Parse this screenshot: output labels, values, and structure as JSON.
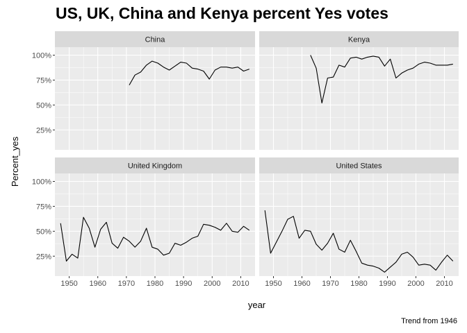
{
  "chart_data": {
    "type": "line",
    "title": "US, UK, China and Kenya percent Yes votes",
    "xlabel": "year",
    "ylabel": "Percent_yes",
    "caption": "Trend from 1946",
    "xlim": [
      1945,
      2015
    ],
    "ylim": [
      0.05,
      1.08
    ],
    "x_ticks": [
      1950,
      1960,
      1970,
      1980,
      1990,
      2000,
      2010
    ],
    "y_ticks": [
      0.25,
      0.5,
      0.75,
      1.0
    ],
    "y_tick_labels": [
      "25%",
      "50%",
      "75%",
      "100%"
    ],
    "grid": true,
    "facets": [
      {
        "name": "China",
        "x": [
          1971,
          1973,
          1975,
          1977,
          1979,
          1981,
          1983,
          1985,
          1987,
          1989,
          1991,
          1993,
          1995,
          1997,
          1999,
          2001,
          2003,
          2005,
          2007,
          2009,
          2011,
          2013
        ],
        "y": [
          0.7,
          0.8,
          0.83,
          0.9,
          0.94,
          0.92,
          0.88,
          0.85,
          0.89,
          0.93,
          0.92,
          0.87,
          0.86,
          0.84,
          0.76,
          0.85,
          0.88,
          0.88,
          0.87,
          0.88,
          0.84,
          0.86
        ]
      },
      {
        "name": "Kenya",
        "x": [
          1963,
          1965,
          1967,
          1969,
          1971,
          1973,
          1975,
          1977,
          1979,
          1981,
          1983,
          1985,
          1987,
          1989,
          1991,
          1993,
          1995,
          1997,
          1999,
          2001,
          2003,
          2005,
          2007,
          2009,
          2011,
          2013
        ],
        "y": [
          1.0,
          0.87,
          0.52,
          0.77,
          0.78,
          0.9,
          0.88,
          0.97,
          0.98,
          0.96,
          0.98,
          0.99,
          0.98,
          0.89,
          0.96,
          0.77,
          0.82,
          0.85,
          0.87,
          0.91,
          0.93,
          0.92,
          0.9,
          0.9,
          0.9,
          0.91
        ]
      },
      {
        "name": "United Kingdom",
        "x": [
          1947,
          1949,
          1951,
          1953,
          1955,
          1957,
          1959,
          1961,
          1963,
          1965,
          1967,
          1969,
          1971,
          1973,
          1975,
          1977,
          1979,
          1981,
          1983,
          1985,
          1987,
          1989,
          1991,
          1993,
          1995,
          1997,
          1999,
          2001,
          2003,
          2005,
          2007,
          2009,
          2011,
          2013
        ],
        "y": [
          0.58,
          0.2,
          0.27,
          0.23,
          0.64,
          0.53,
          0.34,
          0.52,
          0.59,
          0.38,
          0.33,
          0.44,
          0.4,
          0.34,
          0.4,
          0.53,
          0.34,
          0.32,
          0.26,
          0.28,
          0.38,
          0.36,
          0.39,
          0.43,
          0.45,
          0.57,
          0.56,
          0.54,
          0.51,
          0.58,
          0.5,
          0.49,
          0.55,
          0.51
        ]
      },
      {
        "name": "United States",
        "x": [
          1947,
          1949,
          1951,
          1953,
          1955,
          1957,
          1959,
          1961,
          1963,
          1965,
          1967,
          1969,
          1971,
          1973,
          1975,
          1977,
          1979,
          1981,
          1983,
          1985,
          1987,
          1989,
          1991,
          1993,
          1995,
          1997,
          1999,
          2001,
          2003,
          2005,
          2007,
          2009,
          2011,
          2013
        ],
        "y": [
          0.71,
          0.28,
          0.39,
          0.5,
          0.62,
          0.65,
          0.43,
          0.51,
          0.5,
          0.37,
          0.31,
          0.38,
          0.48,
          0.32,
          0.29,
          0.41,
          0.3,
          0.18,
          0.16,
          0.15,
          0.13,
          0.09,
          0.14,
          0.19,
          0.27,
          0.29,
          0.24,
          0.16,
          0.17,
          0.16,
          0.11,
          0.19,
          0.26,
          0.2
        ]
      }
    ]
  }
}
